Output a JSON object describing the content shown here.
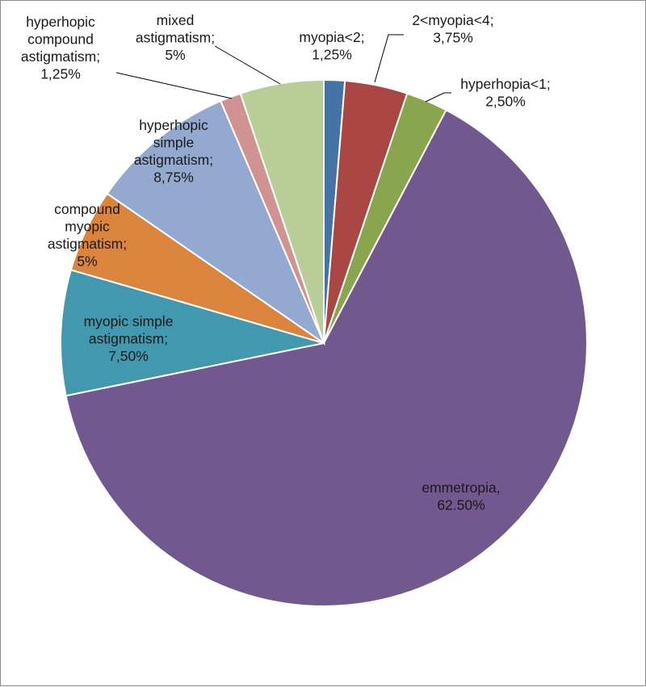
{
  "chart_data": {
    "type": "pie",
    "title": "",
    "start_angle_deg": 0,
    "direction": "clockwise",
    "slices": [
      {
        "key": "myopia_lt2",
        "name": "myopia<2",
        "value": 1.25,
        "label_lines": [
          "myopia<2;",
          "1,25%"
        ],
        "color": "#4572A7"
      },
      {
        "key": "myopia_2_4",
        "name": "2<myopia<4",
        "value": 3.75,
        "label_lines": [
          "2<myopia<4;",
          "3,75%"
        ],
        "color": "#AA4643"
      },
      {
        "key": "hyperhopia_lt1",
        "name": "hyperhopia<1",
        "value": 2.5,
        "label_lines": [
          "hyperhopia<1;",
          "2,50%"
        ],
        "color": "#89A54E"
      },
      {
        "key": "emmetropia",
        "name": "emmetropia",
        "value": 62.5,
        "label_lines": [
          "emmetropia,",
          "62.50%"
        ],
        "color": "#71588F"
      },
      {
        "key": "myopic_simple_astig",
        "name": "myopic simple astigmatism",
        "value": 7.5,
        "label_lines": [
          "myopic simple",
          "astigmatism;",
          "7,50%"
        ],
        "color": "#4198AF"
      },
      {
        "key": "compound_myopic_astig",
        "name": "compound myopic astigmatism",
        "value": 5,
        "label_lines": [
          "compound",
          "myopic",
          "astigmatism;",
          "5%"
        ],
        "color": "#DB843D"
      },
      {
        "key": "hyperhopic_simple_astig",
        "name": "hyperhopic simple astigmatism",
        "value": 8.75,
        "label_lines": [
          "hyperhopic",
          "simple",
          "astigmatism;",
          "8,75%"
        ],
        "color": "#93A9CF"
      },
      {
        "key": "hyperhopic_compound_astig",
        "name": "hyperhopic compound astigmatism",
        "value": 1.25,
        "label_lines": [
          "hyperhopic",
          "compound",
          "astigmatism;",
          "1,25%"
        ],
        "color": "#D19392"
      },
      {
        "key": "mixed_astig",
        "name": "mixed astigmatism",
        "value": 5,
        "label_lines": [
          "mixed",
          "astigmatism;",
          "5%"
        ],
        "color": "#B9CD96"
      }
    ]
  }
}
